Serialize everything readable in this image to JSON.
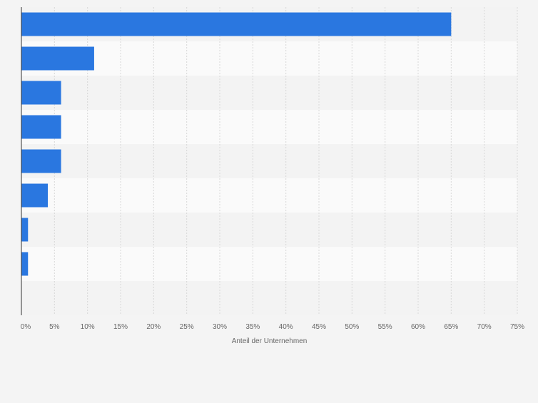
{
  "chart_data": {
    "type": "bar",
    "orientation": "horizontal",
    "categories": [
      "",
      "",
      "",
      "",
      "",
      "",
      "",
      "",
      ""
    ],
    "values": [
      65,
      11,
      6,
      6,
      6,
      4,
      1,
      1,
      null
    ],
    "xlabel": "Anteil der Unternehmen",
    "ylabel": "",
    "xlim": [
      0,
      75
    ],
    "xticks": [
      0,
      5,
      10,
      15,
      20,
      25,
      30,
      35,
      40,
      45,
      50,
      55,
      60,
      65,
      70,
      75
    ],
    "xtick_labels": [
      "0%",
      "5%",
      "10%",
      "15%",
      "20%",
      "25%",
      "30%",
      "35%",
      "40%",
      "45%",
      "50%",
      "55%",
      "60%",
      "65%",
      "70%",
      "75%"
    ],
    "grid": true,
    "colors": {
      "bar": "#2a77e0",
      "background": "#f4f4f4",
      "band_light": "#fafafa",
      "band_dark": "#f3f3f3",
      "grid": "#d8d8d8",
      "axis": "#333333",
      "tick_text": "#666666"
    }
  }
}
